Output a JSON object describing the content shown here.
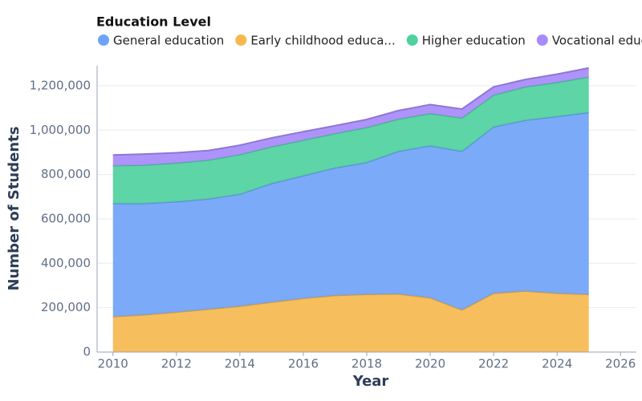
{
  "chart_data": {
    "type": "stacked-area",
    "x_label": "Year",
    "y_label": "Number of Students",
    "legend_title": "Education Level",
    "x": [
      2010,
      2011,
      2012,
      2013,
      2014,
      2015,
      2016,
      2017,
      2018,
      2019,
      2020,
      2021,
      2022,
      2023,
      2024,
      2025
    ],
    "series": [
      {
        "name": "Early childhood educa...",
        "color": "#f6b84f",
        "values": [
          160000,
          168000,
          180000,
          193000,
          207000,
          225000,
          242000,
          255000,
          260000,
          262000,
          245000,
          190000,
          265000,
          275000,
          265000,
          260000
        ]
      },
      {
        "name": "General education",
        "color": "#6fa3f7",
        "values": [
          510000,
          502000,
          498000,
          497000,
          505000,
          535000,
          553000,
          575000,
          595000,
          643000,
          685000,
          715000,
          750000,
          770000,
          797000,
          820000
        ]
      },
      {
        "name": "Higher education",
        "color": "#4fd1a0",
        "values": [
          170000,
          173000,
          174000,
          175000,
          178000,
          165000,
          160000,
          155000,
          157000,
          145000,
          145000,
          150000,
          143000,
          150000,
          153000,
          160000
        ]
      },
      {
        "name": "Vocational education",
        "color": "#a78bfa",
        "values": [
          48000,
          49000,
          46000,
          43000,
          42000,
          40000,
          38000,
          35000,
          36000,
          38000,
          40000,
          40000,
          37000,
          33000,
          37000,
          40000
        ]
      }
    ],
    "legend_order": [
      1,
      0,
      2,
      3
    ],
    "xlim": [
      2009.5,
      2026.5
    ],
    "xticks": [
      2010,
      2012,
      2014,
      2016,
      2018,
      2020,
      2022,
      2024,
      2026
    ],
    "ylim": [
      0,
      1290000
    ],
    "yticks": [
      0,
      {
        "value": 200000,
        "label": "200,000"
      },
      {
        "value": 400000,
        "label": "400,000"
      },
      {
        "value": 600000,
        "label": "600,000"
      },
      {
        "value": 800000,
        "label": "800,000"
      },
      {
        "value": 1000000,
        "label": "1,000,000"
      },
      {
        "value": 1200000,
        "label": "1,200,000"
      }
    ],
    "grid": true
  }
}
